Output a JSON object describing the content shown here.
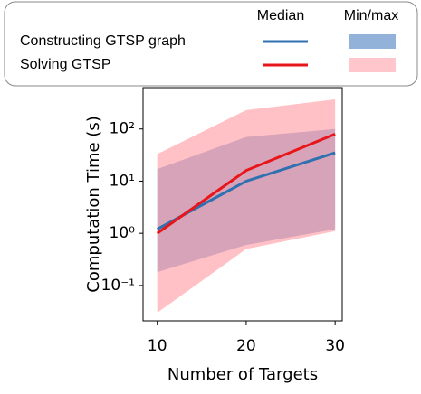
{
  "chart_data": {
    "type": "line",
    "x": [
      10,
      20,
      30
    ],
    "xlim": [
      8.4,
      30.8
    ],
    "xticks": [
      10,
      20,
      30
    ],
    "ylim": [
      0.021,
      620
    ],
    "yticks": [
      {
        "value": 0.1,
        "label": "10⁻¹"
      },
      {
        "value": 1,
        "label": "10⁰"
      },
      {
        "value": 10,
        "label": "10¹"
      },
      {
        "value": 100,
        "label": "10²"
      }
    ],
    "log_y": true,
    "xlabel": "Number of Targets",
    "ylabel": "Computation Time (s)",
    "legend_headers": [
      "Median",
      "Min/max"
    ],
    "series": [
      {
        "name": "Constructing GTSP graph",
        "color": "#2f70b0",
        "band_color": "#4a7fbf",
        "values": [
          1.2,
          10,
          35
        ],
        "min": [
          0.18,
          0.6,
          1.2
        ],
        "max": [
          17,
          70,
          100
        ]
      },
      {
        "name": "Solving GTSP",
        "color": "#e8161b",
        "band_color": "#ff8d97",
        "values": [
          1.0,
          16,
          80
        ],
        "min": [
          0.03,
          0.5,
          1.1
        ],
        "max": [
          33,
          230,
          370
        ]
      }
    ]
  }
}
